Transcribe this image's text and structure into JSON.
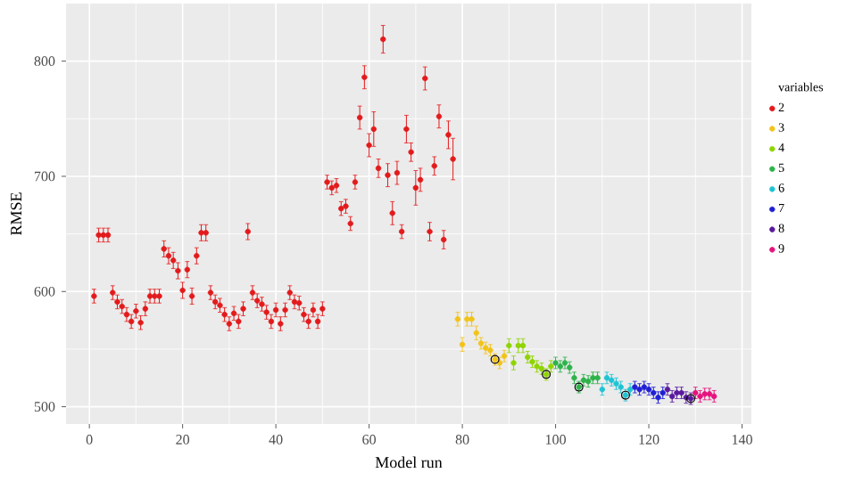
{
  "chart_data": {
    "type": "scatter",
    "xlabel": "Model run",
    "ylabel": "RMSE",
    "legend_title": "variables",
    "xlim": [
      -5,
      142
    ],
    "ylim": [
      485,
      850
    ],
    "xticks": [
      0,
      20,
      40,
      60,
      80,
      100,
      120,
      140
    ],
    "yticks": [
      500,
      600,
      700,
      800
    ],
    "grid": true,
    "legend": "right",
    "marker": "circle",
    "series": [
      {
        "name": "2",
        "color": "#e31a1c",
        "x": [
          1,
          2,
          3,
          4,
          5,
          6,
          7,
          8,
          9,
          10,
          11,
          12,
          13,
          14,
          15,
          16,
          17,
          18,
          19,
          20,
          21,
          22,
          23,
          24,
          25,
          26,
          27,
          28,
          29,
          30,
          31,
          32,
          33,
          34,
          35,
          36,
          37,
          38,
          39,
          40,
          41,
          42,
          43,
          44,
          45,
          46,
          47,
          48,
          49,
          50,
          51,
          52,
          53,
          54,
          55,
          56,
          57,
          58,
          59,
          60,
          61,
          62,
          63,
          64,
          65,
          66,
          67,
          68,
          69,
          70,
          71,
          72,
          73,
          74,
          75,
          76,
          77,
          78
        ],
        "values": [
          596,
          649,
          649,
          649,
          599,
          591,
          587,
          580,
          574,
          583,
          573,
          585,
          596,
          596,
          596,
          637,
          631,
          627,
          618,
          601,
          619,
          596,
          631,
          651,
          651,
          599,
          591,
          588,
          580,
          572,
          581,
          574,
          585,
          652,
          599,
          592,
          589,
          582,
          574,
          584,
          572,
          584,
          599,
          591,
          590,
          580,
          574,
          584,
          574,
          585,
          695,
          690,
          692,
          672,
          674,
          659,
          695,
          751,
          786,
          727,
          741,
          707,
          819,
          701,
          668,
          703,
          652,
          741,
          721,
          690,
          697,
          785,
          652,
          709,
          752,
          645,
          736,
          715
        ],
        "errors": [
          6,
          6,
          6,
          6,
          6,
          6,
          6,
          6,
          6,
          6,
          6,
          6,
          6,
          6,
          6,
          7,
          7,
          7,
          7,
          7,
          7,
          7,
          7,
          7,
          7,
          6,
          6,
          6,
          6,
          6,
          6,
          6,
          6,
          7,
          6,
          6,
          6,
          6,
          6,
          6,
          6,
          6,
          6,
          6,
          6,
          6,
          6,
          6,
          6,
          6,
          6,
          6,
          6,
          6,
          6,
          6,
          6,
          10,
          10,
          10,
          15,
          8,
          12,
          10,
          10,
          10,
          6,
          12,
          8,
          15,
          10,
          10,
          8,
          8,
          10,
          8,
          12,
          18
        ]
      },
      {
        "name": "3",
        "color": "#f2c318",
        "x": [
          79,
          80,
          81,
          82,
          83,
          84,
          85,
          86,
          87,
          88,
          89
        ],
        "values": [
          576,
          554,
          576,
          576,
          564,
          555,
          551,
          549,
          541,
          538,
          544
        ],
        "errors": [
          6,
          6,
          6,
          6,
          6,
          5,
          5,
          5,
          5,
          5,
          5
        ]
      },
      {
        "name": "4",
        "color": "#8fd400",
        "x": [
          90,
          91,
          92,
          93,
          94,
          95,
          96,
          97,
          98,
          99
        ],
        "values": [
          553,
          538,
          553,
          553,
          543,
          539,
          535,
          533,
          528,
          535
        ],
        "errors": [
          6,
          6,
          6,
          6,
          5,
          5,
          5,
          5,
          5,
          5
        ]
      },
      {
        "name": "5",
        "color": "#2db34a",
        "x": [
          100,
          101,
          102,
          103,
          104,
          105,
          106,
          107,
          108,
          109
        ],
        "values": [
          538,
          535,
          538,
          534,
          525,
          517,
          523,
          522,
          525,
          525
        ],
        "errors": [
          5,
          5,
          5,
          5,
          5,
          5,
          5,
          5,
          5,
          5
        ]
      },
      {
        "name": "6",
        "color": "#1fc4d4",
        "x": [
          110,
          111,
          112,
          113,
          114,
          115,
          116
        ],
        "values": [
          515,
          525,
          523,
          520,
          517,
          510,
          515
        ],
        "errors": [
          5,
          5,
          5,
          5,
          5,
          5,
          5
        ]
      },
      {
        "name": "7",
        "color": "#1f1fd6",
        "x": [
          117,
          118,
          119,
          120,
          121,
          122,
          123
        ],
        "values": [
          517,
          515,
          517,
          515,
          512,
          508,
          512
        ],
        "errors": [
          5,
          5,
          5,
          5,
          5,
          5,
          5
        ]
      },
      {
        "name": "8",
        "color": "#5a1a9e",
        "x": [
          124,
          125,
          126,
          127,
          128,
          129
        ],
        "values": [
          515,
          509,
          512,
          512,
          508,
          507
        ],
        "errors": [
          5,
          5,
          5,
          5,
          5,
          5
        ]
      },
      {
        "name": "9",
        "color": "#e6127d",
        "x": [
          130,
          131,
          132,
          133,
          134
        ],
        "values": [
          512,
          509,
          511,
          511,
          509
        ],
        "errors": [
          5,
          5,
          5,
          5,
          5
        ]
      },
      {
        "color": "#000000",
        "x": [
          87,
          98,
          105,
          115,
          129
        ],
        "values": [
          541,
          528,
          517,
          510,
          507
        ]
      }
    ]
  }
}
